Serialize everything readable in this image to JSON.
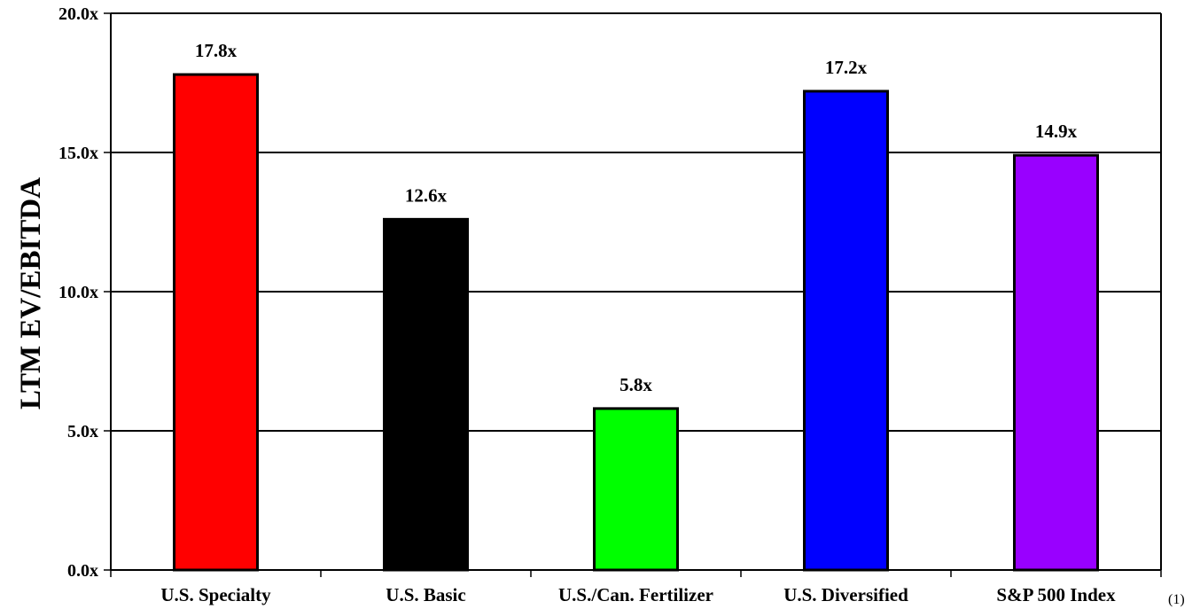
{
  "chart_data": {
    "type": "bar",
    "ylabel": "LTM EV/EBITDA",
    "xlabel": "",
    "ylim": [
      0,
      20
    ],
    "yticks": [
      0,
      5,
      10,
      15,
      20
    ],
    "ytick_labels": [
      "0.0x",
      "5.0x",
      "10.0x",
      "15.0x",
      "20.0x"
    ],
    "grid": true,
    "categories": [
      "U.S. Specialty",
      "U.S. Basic",
      "U.S./Can. Fertilizer",
      "U.S. Diversified",
      "S&P 500 Index"
    ],
    "values": [
      17.8,
      12.6,
      5.8,
      17.2,
      14.9
    ],
    "data_labels": [
      "17.8x",
      "12.6x",
      "5.8x",
      "17.2x",
      "14.9x"
    ],
    "colors": [
      "#ff0000",
      "#000000",
      "#00ff00",
      "#0000ff",
      "#9900ff"
    ],
    "footnote_marker": "(1)"
  }
}
